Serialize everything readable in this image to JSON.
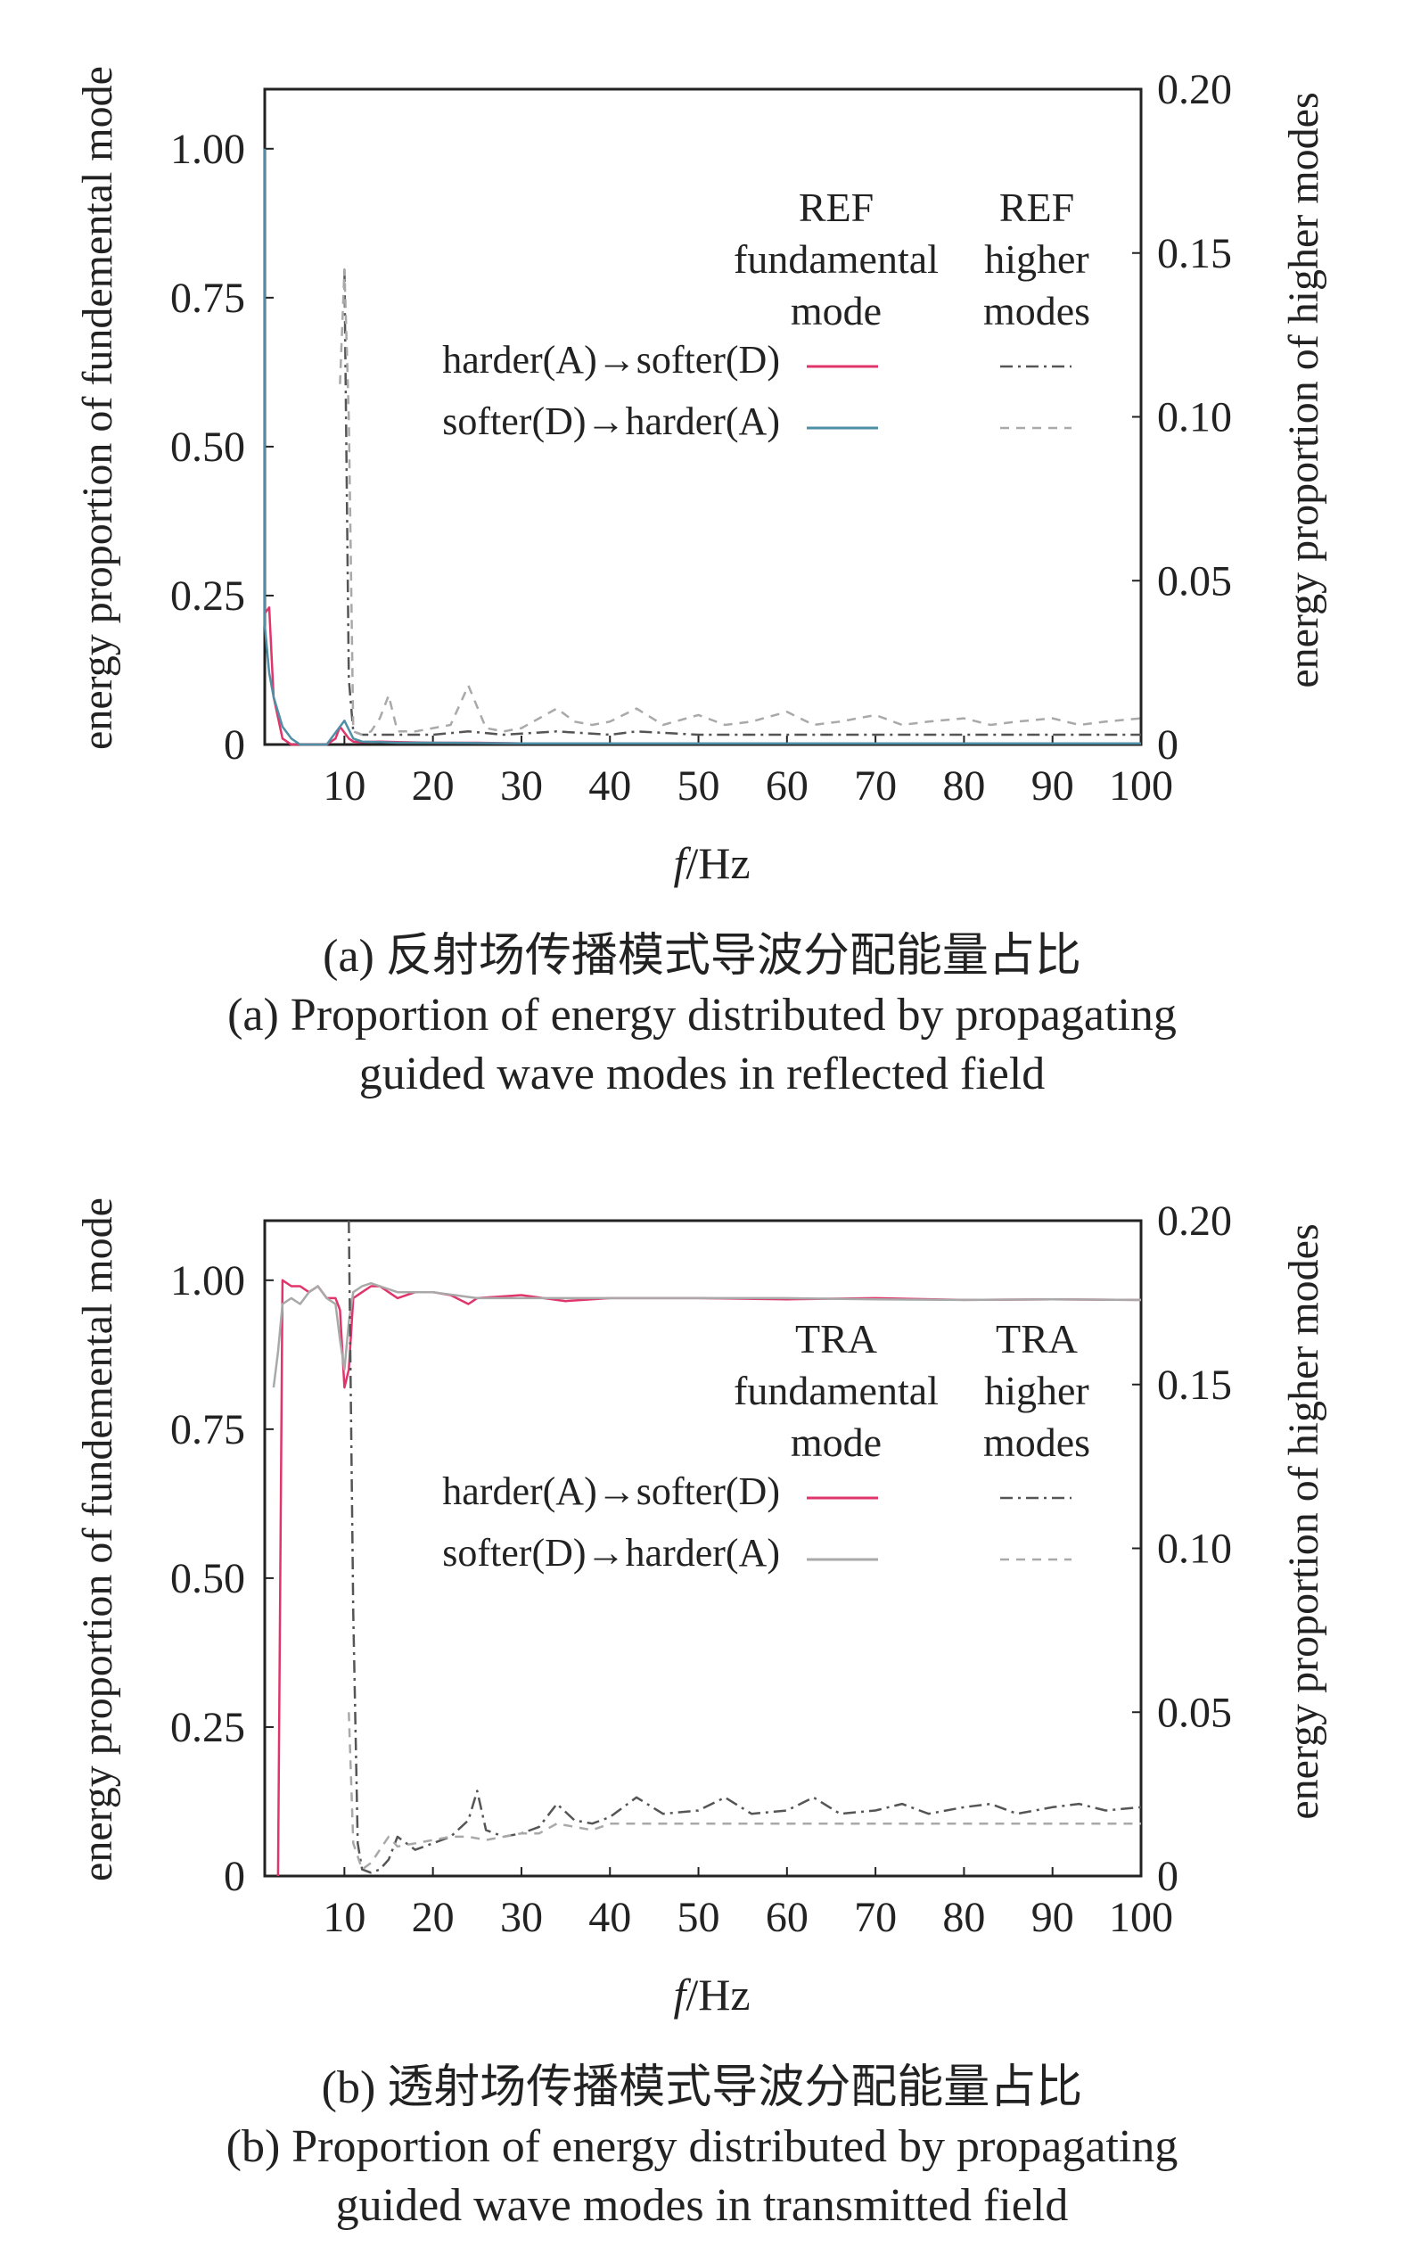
{
  "colors": {
    "harder_to_softer_fundamental": "#e0356b",
    "softer_to_harder_fundamental": "#4f8fa6",
    "harder_to_softer_higher": "#555555",
    "softer_to_harder_higher": "#a9a9a9",
    "axis": "#222222"
  },
  "panels": [
    {
      "caption_cn": "(a) 反射场传播模式导波分配能量占比",
      "caption_en_1": "(a) Proportion of energy distributed by propagating",
      "caption_en_2": "guided wave modes in reflected field",
      "legend": {
        "col1": [
          "REF",
          "fundamental",
          "mode"
        ],
        "col2": [
          "REF",
          "higher",
          "modes"
        ],
        "row1": "harder(A)→softer(D)",
        "row2": "softer(D)→harder(A)"
      }
    },
    {
      "caption_cn": "(b) 透射场传播模式导波分配能量占比",
      "caption_en_1": "(b) Proportion of energy distributed by propagating",
      "caption_en_2": "guided wave modes in transmitted field",
      "legend": {
        "col1": [
          "TRA",
          "fundamental",
          "mode"
        ],
        "col2": [
          "TRA",
          "higher",
          "modes"
        ],
        "row1": "harder(A)→softer(D)",
        "row2": "softer(D)→harder(A)"
      }
    }
  ],
  "chart_data": [
    {
      "type": "line",
      "xlabel": "f/Hz",
      "ylabel_left": "energy proportion of fundemental mode",
      "ylabel_right": "energy proportion of higher modes",
      "xlim": [
        1,
        100
      ],
      "ylim_left": [
        0,
        1.1
      ],
      "ylim_right": [
        0,
        0.2
      ],
      "xticks": [
        "10",
        "20",
        "30",
        "40",
        "50",
        "60",
        "70",
        "80",
        "90",
        "100"
      ],
      "yticks_left": [
        "0",
        "0.25",
        "0.50",
        "0.75",
        "1.00"
      ],
      "yticks_right": [
        "0",
        "0.05",
        "0.10",
        "0.15",
        "0.20"
      ],
      "series": [
        {
          "name": "harder(A)→softer(D) REF fundamental mode",
          "axis": "left",
          "style": "solid",
          "color": "#e0356b",
          "x": [
            1,
            1.5,
            2,
            3,
            4,
            5,
            6,
            7,
            8,
            9,
            9.5,
            10,
            10.5,
            11,
            12,
            14,
            16,
            20,
            25,
            30,
            40,
            50,
            60,
            70,
            80,
            90,
            100
          ],
          "y": [
            0.22,
            0.23,
            0.08,
            0.01,
            0,
            0,
            0,
            0,
            0,
            0.01,
            0.03,
            0.02,
            0.01,
            0.005,
            0.004,
            0.005,
            0.004,
            0.003,
            0.003,
            0.002,
            0.002,
            0.002,
            0.002,
            0.002,
            0.002,
            0.002,
            0.002
          ]
        },
        {
          "name": "softer(D)→harder(A) REF fundamental mode",
          "axis": "left",
          "style": "solid",
          "color": "#4f8fa6",
          "x": [
            0.5,
            1,
            1.5,
            2,
            3,
            4,
            5,
            6,
            7,
            8,
            9,
            10,
            11,
            12,
            14,
            16,
            20,
            30,
            40,
            50,
            60,
            70,
            80,
            90,
            100
          ],
          "y": [
            1.0,
            0.2,
            0.12,
            0.08,
            0.03,
            0.01,
            0,
            0,
            0,
            0,
            0.02,
            0.04,
            0.01,
            0.005,
            0.004,
            0.003,
            0.003,
            0.002,
            0.002,
            0.002,
            0.002,
            0.002,
            0.002,
            0.002,
            0.002
          ]
        },
        {
          "name": "harder(A)→softer(D) REF higher modes",
          "axis": "right",
          "style": "dashdot",
          "color": "#555555",
          "x": [
            10,
            10.5,
            11,
            12,
            15,
            20,
            24,
            28,
            34,
            40,
            43,
            50,
            60,
            70,
            80,
            90,
            100
          ],
          "y": [
            0.145,
            0.02,
            0.004,
            0.003,
            0.003,
            0.003,
            0.004,
            0.003,
            0.004,
            0.003,
            0.004,
            0.003,
            0.003,
            0.003,
            0.003,
            0.003,
            0.003
          ]
        },
        {
          "name": "softer(D)→harder(A) REF higher modes",
          "axis": "right",
          "style": "dash",
          "color": "#a9a9a9",
          "x": [
            9.5,
            10,
            10.5,
            11,
            12,
            13,
            14,
            15,
            16,
            18,
            20,
            22,
            24,
            26,
            28,
            30,
            32,
            34,
            36,
            38,
            40,
            43,
            46,
            50,
            53,
            56,
            60,
            63,
            66,
            70,
            73,
            76,
            80,
            83,
            86,
            90,
            93,
            96,
            100
          ],
          "y": [
            0.11,
            0.145,
            0.1,
            0.004,
            0.003,
            0.004,
            0.008,
            0.015,
            0.004,
            0.004,
            0.005,
            0.006,
            0.018,
            0.005,
            0.004,
            0.005,
            0.008,
            0.011,
            0.007,
            0.006,
            0.007,
            0.011,
            0.006,
            0.009,
            0.006,
            0.007,
            0.01,
            0.006,
            0.007,
            0.009,
            0.006,
            0.007,
            0.008,
            0.006,
            0.007,
            0.008,
            0.006,
            0.007,
            0.008
          ]
        }
      ]
    },
    {
      "type": "line",
      "xlabel": "f/Hz",
      "ylabel_left": "energy proportion of fundemental mode",
      "ylabel_right": "energy proportion of higher modes",
      "xlim": [
        1,
        100
      ],
      "ylim_left": [
        0,
        1.1
      ],
      "ylim_right": [
        0,
        0.2
      ],
      "xticks": [
        "10",
        "20",
        "30",
        "40",
        "50",
        "60",
        "70",
        "80",
        "90",
        "100"
      ],
      "yticks_left": [
        "0",
        "0.25",
        "0.50",
        "0.75",
        "1.00"
      ],
      "yticks_right": [
        "0",
        "0.05",
        "0.10",
        "0.15",
        "0.20"
      ],
      "series": [
        {
          "name": "harder(A)→softer(D) TRA fundamental mode",
          "axis": "left",
          "style": "solid",
          "color": "#e0356b",
          "x": [
            2.5,
            3,
            4,
            5,
            6,
            7,
            8,
            9,
            9.5,
            10,
            10.5,
            11,
            12,
            13,
            14,
            15,
            16,
            18,
            20,
            22,
            24,
            25,
            30,
            35,
            40,
            50,
            60,
            70,
            80,
            90,
            100
          ],
          "y": [
            0,
            1.0,
            0.99,
            0.99,
            0.98,
            0.99,
            0.97,
            0.97,
            0.95,
            0.82,
            0.85,
            0.97,
            0.98,
            0.99,
            0.99,
            0.98,
            0.97,
            0.98,
            0.98,
            0.975,
            0.96,
            0.97,
            0.975,
            0.965,
            0.97,
            0.97,
            0.968,
            0.97,
            0.967,
            0.968,
            0.967
          ]
        },
        {
          "name": "softer(D)→harder(A) TRA fundamental mode",
          "axis": "left",
          "style": "solid",
          "color": "#a9a9a9",
          "x": [
            2,
            2.5,
            3,
            4,
            5,
            6,
            7,
            8,
            9,
            9.5,
            10,
            10.5,
            11,
            12,
            13,
            14,
            16,
            20,
            25,
            30,
            40,
            50,
            60,
            70,
            80,
            90,
            100
          ],
          "y": [
            0.82,
            0.88,
            0.96,
            0.97,
            0.96,
            0.98,
            0.99,
            0.97,
            0.96,
            0.9,
            0.85,
            0.93,
            0.98,
            0.99,
            0.995,
            0.99,
            0.98,
            0.98,
            0.97,
            0.97,
            0.97,
            0.97,
            0.97,
            0.968,
            0.967,
            0.968,
            0.967
          ]
        },
        {
          "name": "harder(A)→softer(D) TRA higher modes",
          "axis": "right",
          "style": "dashdot",
          "color": "#555555",
          "x": [
            10.5,
            11,
            11.5,
            12,
            13,
            14,
            15,
            16,
            18,
            20,
            22,
            24,
            25,
            26,
            28,
            30,
            32,
            34,
            36,
            38,
            40,
            43,
            46,
            50,
            53,
            56,
            60,
            63,
            66,
            70,
            73,
            76,
            80,
            83,
            86,
            90,
            93,
            96,
            100
          ],
          "y": [
            0.2,
            0.08,
            0.01,
            0.002,
            0.001,
            0.002,
            0.005,
            0.012,
            0.008,
            0.01,
            0.012,
            0.017,
            0.026,
            0.014,
            0.012,
            0.013,
            0.015,
            0.022,
            0.017,
            0.016,
            0.018,
            0.024,
            0.019,
            0.02,
            0.024,
            0.019,
            0.02,
            0.024,
            0.019,
            0.02,
            0.022,
            0.019,
            0.021,
            0.022,
            0.019,
            0.021,
            0.022,
            0.02,
            0.021
          ]
        },
        {
          "name": "softer(D)→harder(A) TRA higher modes",
          "axis": "right",
          "style": "dash",
          "color": "#a9a9a9",
          "x": [
            10.5,
            11,
            12,
            13,
            14,
            15,
            16,
            18,
            20,
            22,
            24,
            26,
            28,
            30,
            32,
            34,
            36,
            38,
            40,
            45,
            50,
            55,
            60,
            65,
            70,
            75,
            80,
            85,
            90,
            95,
            100
          ],
          "y": [
            0.05,
            0.01,
            0.002,
            0.004,
            0.008,
            0.012,
            0.009,
            0.01,
            0.011,
            0.012,
            0.012,
            0.011,
            0.012,
            0.013,
            0.013,
            0.016,
            0.015,
            0.014,
            0.016,
            0.016,
            0.016,
            0.016,
            0.016,
            0.016,
            0.016,
            0.016,
            0.016,
            0.016,
            0.016,
            0.016,
            0.016
          ]
        }
      ]
    }
  ]
}
